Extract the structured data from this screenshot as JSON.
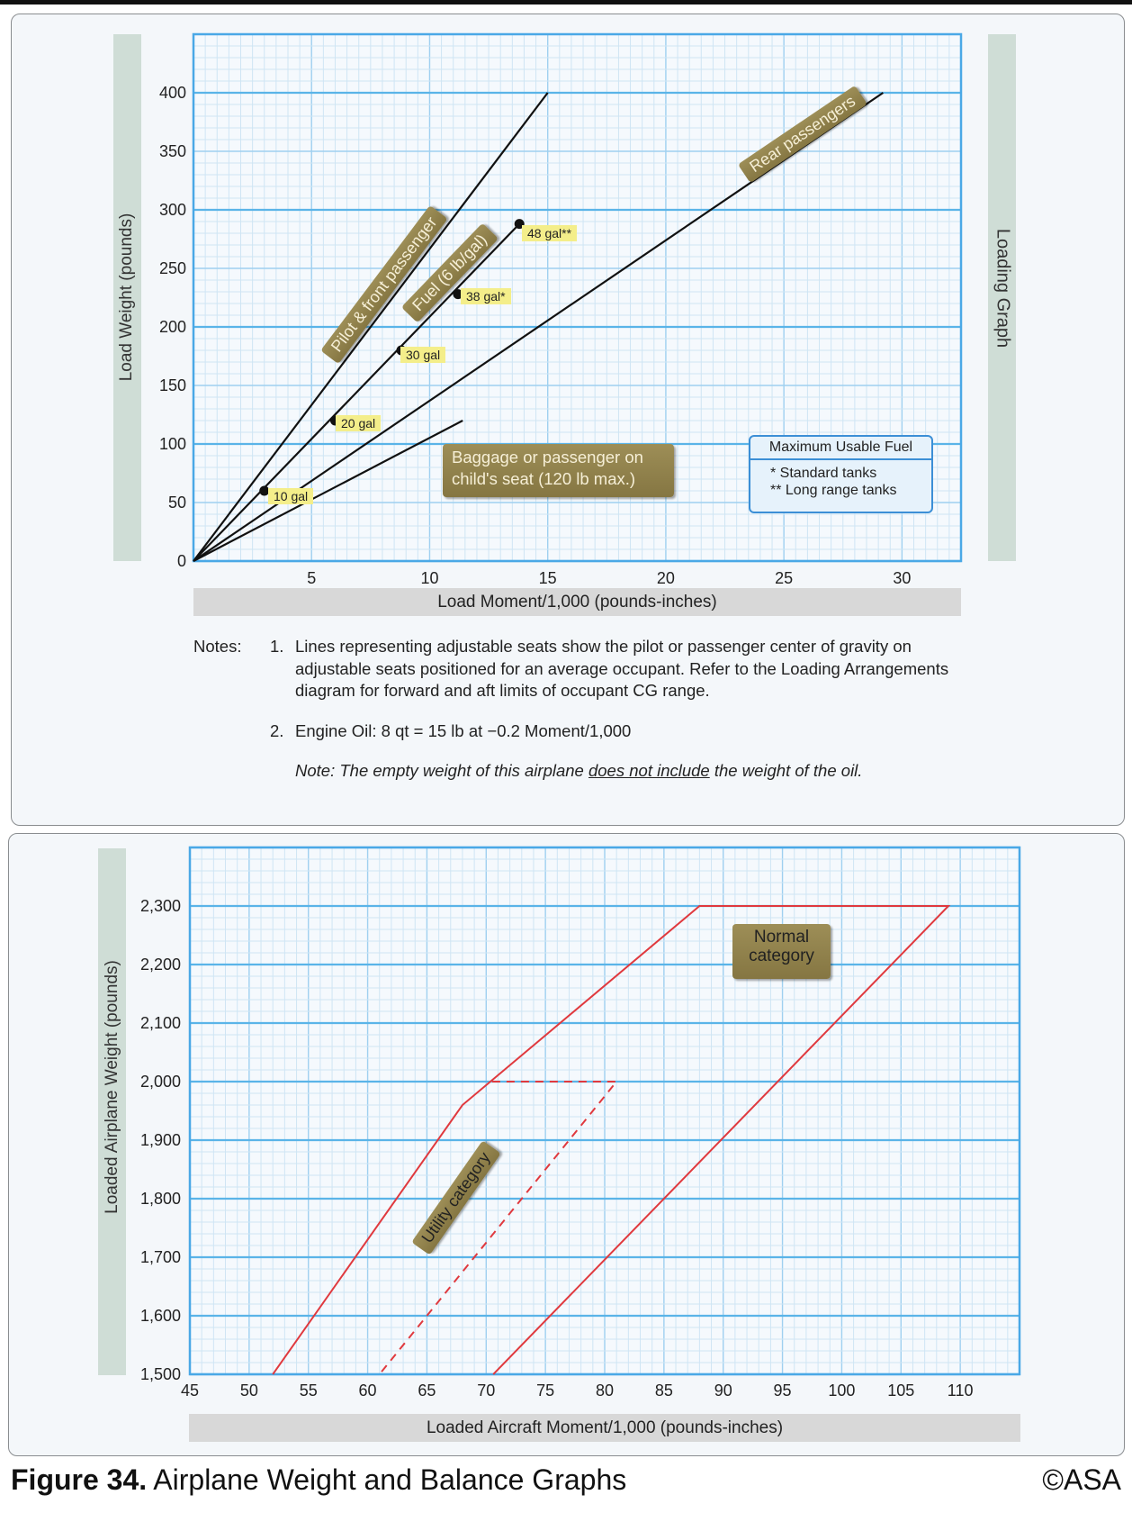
{
  "figure": {
    "number_label": "Figure 34.",
    "title": "Airplane Weight and Balance Graphs",
    "copyright": "©ASA"
  },
  "colors": {
    "grid_major": "#5ab4e8",
    "grid_minor": "#cfe5f4",
    "load_lines": "#111111",
    "envelope": "#e0393e",
    "tag_fill": "#8f8049",
    "fuel_label_fill": "#f4ee8a"
  },
  "chart_data": [
    {
      "type": "line",
      "title": "Loading Graph",
      "xlabel": "Load Moment/1,000 (pounds-inches)",
      "ylabel": "Load  Weight (pounds)",
      "xlim": [
        0,
        32.5
      ],
      "ylim": [
        0,
        450
      ],
      "xticks": [
        5,
        10,
        15,
        20,
        25,
        30
      ],
      "yticks": [
        0,
        50,
        100,
        150,
        200,
        250,
        300,
        350,
        400
      ],
      "grid": true,
      "series": [
        {
          "name": "Pilot & front passenger",
          "x": [
            0,
            15
          ],
          "y": [
            0,
            400
          ]
        },
        {
          "name": "Fuel (6 lb/gal)",
          "x": [
            0,
            13.8
          ],
          "y": [
            0,
            288
          ],
          "points": [
            {
              "label": "10 gal",
              "x": 3.0,
              "y": 60
            },
            {
              "label": "20 gal",
              "x": 6.0,
              "y": 120
            },
            {
              "label": "30 gal",
              "x": 8.8,
              "y": 180
            },
            {
              "label": "38 gal*",
              "x": 11.2,
              "y": 228
            },
            {
              "label": "48 gal**",
              "x": 13.8,
              "y": 288
            }
          ]
        },
        {
          "name": "Rear passengers",
          "x": [
            0,
            29.2
          ],
          "y": [
            0,
            400
          ]
        },
        {
          "name": "Baggage or passenger on child's seat (120 lb max.)",
          "x": [
            0,
            11.4
          ],
          "y": [
            0,
            120
          ]
        }
      ],
      "legend": {
        "title": "Maximum Usable Fuel",
        "items": [
          "* Standard tanks",
          "** Long range tanks"
        ],
        "placement": "bottom-right"
      }
    },
    {
      "type": "line",
      "xlabel": "Loaded Aircraft Moment/1,000 (pounds-inches)",
      "ylabel": "Loaded  Airplane Weight (pounds)",
      "xlim": [
        45,
        115
      ],
      "ylim": [
        1500,
        2400
      ],
      "xticks": [
        45,
        50,
        55,
        60,
        65,
        70,
        75,
        80,
        85,
        90,
        95,
        100,
        105,
        110
      ],
      "yticks": [
        1500,
        1600,
        1700,
        1800,
        1900,
        2000,
        2100,
        2200,
        2300
      ],
      "ytick_labels": [
        "1,500",
        "1,600",
        "1,700",
        "1,800",
        "1,900",
        "2,000",
        "2,100",
        "2,200",
        "2,300"
      ],
      "grid": true,
      "series": [
        {
          "name": "Normal category",
          "style": "solid",
          "x": [
            52,
            68,
            88,
            109,
            70.6
          ],
          "y": [
            1500,
            1960,
            2300,
            2300,
            1500
          ]
        },
        {
          "name": "Utility category",
          "style": "dashed",
          "x": [
            70.5,
            81,
            61
          ],
          "y": [
            2000,
            2000,
            1500
          ]
        }
      ]
    }
  ],
  "notes": {
    "heading": "Notes:",
    "items": [
      {
        "num": "1.",
        "text": "Lines representing adjustable seats show the pilot or passenger center of gravity on adjustable seats positioned for an average occupant. Refer to the Loading Arrangements diagram for forward and aft limits of occupant CG range."
      },
      {
        "num": "2.",
        "text": "Engine Oil: 8 qt = 15 lb at −0.2 Moment/1,000"
      }
    ],
    "oil_note_prefix": "Note: The empty weight of this airplane ",
    "oil_note_underlined": "does not include",
    "oil_note_suffix": " the weight of the oil."
  }
}
